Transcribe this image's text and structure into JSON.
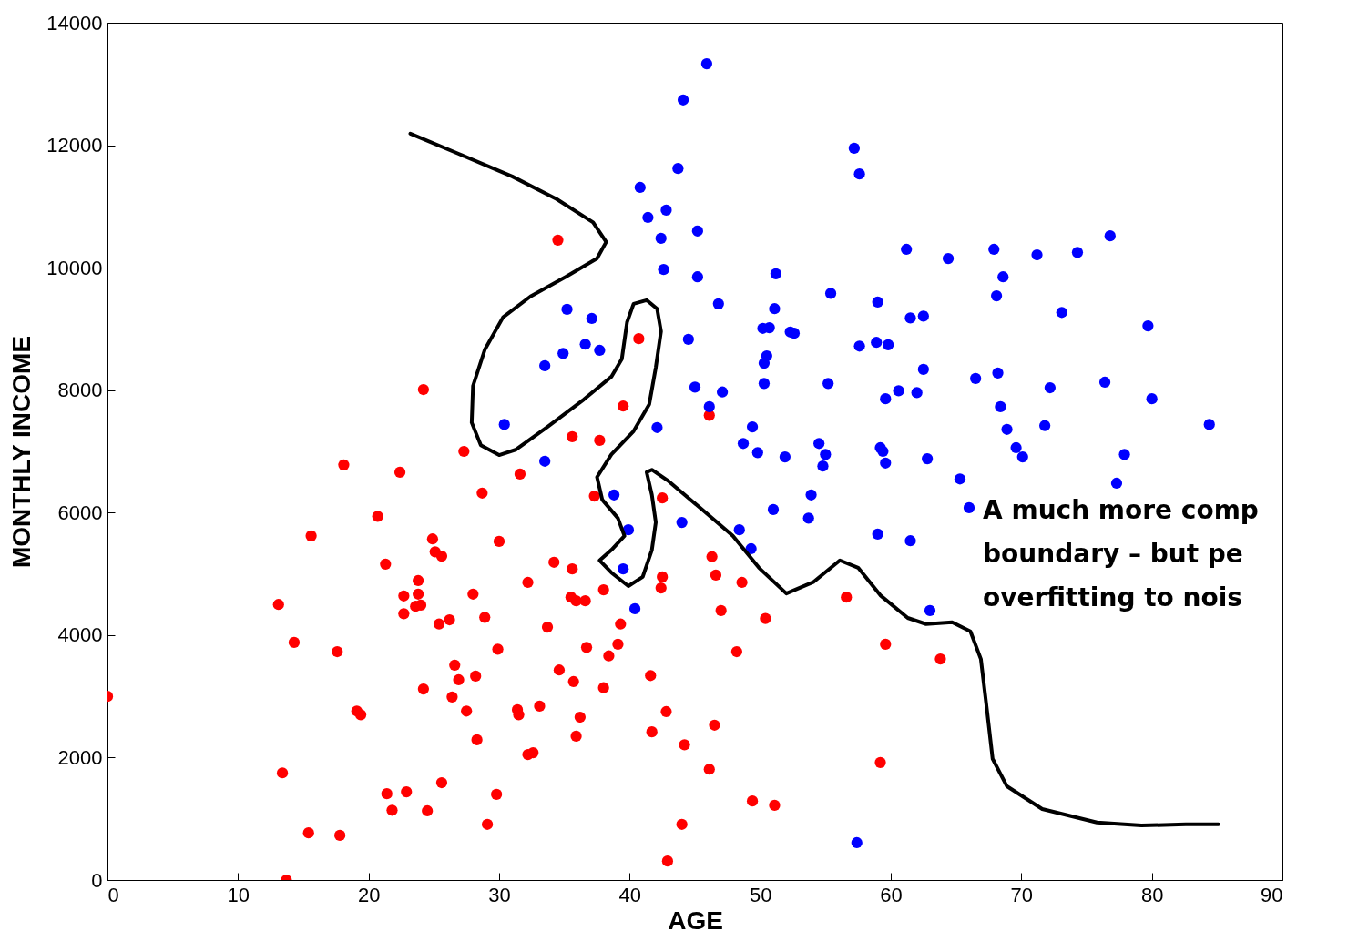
{
  "chart_data": {
    "type": "scatter",
    "xlabel": "AGE",
    "ylabel": "MONTHLY INCOME",
    "xlim": [
      0,
      90
    ],
    "ylim": [
      0,
      14000
    ],
    "xticks": [
      0,
      10,
      20,
      30,
      40,
      50,
      60,
      70,
      80,
      90
    ],
    "yticks": [
      0,
      2000,
      4000,
      6000,
      8000,
      10000,
      12000,
      14000
    ],
    "grid": false,
    "annotations": [
      "A much more comp\nboundary – but pe\noverfitting to nois"
    ],
    "series": [
      {
        "marker": "circle",
        "color": "#ff0000",
        "x": [
          0,
          13.1,
          13.4,
          13.7,
          14.3,
          15.4,
          15.6,
          17.6,
          17.8,
          18.1,
          19.1,
          19.4,
          20.7,
          21.3,
          21.4,
          21.8,
          22.4,
          22.7,
          22.7,
          22.9,
          23.8,
          23.8,
          23.6,
          24.0,
          24.2,
          24.2,
          24.5,
          24.9,
          25.1,
          25.6,
          25.4,
          26.2,
          25.6,
          26.4,
          26.6,
          26.9,
          27.3,
          27.5,
          28.0,
          28.2,
          28.3,
          28.7,
          28.9,
          29.1,
          29.8,
          29.9,
          30.0,
          31.4,
          31.5,
          31.6,
          32.2,
          32.2,
          32.6,
          33.1,
          33.7,
          34.2,
          34.5,
          34.6,
          35.6,
          35.6,
          35.5,
          35.9,
          35.7,
          35.9,
          36.2,
          36.6,
          36.7,
          37.3,
          37.7,
          38.0,
          38.0,
          38.4,
          39.1,
          39.3,
          39.5,
          40.7,
          41.6,
          41.7,
          42.5,
          42.5,
          42.4,
          42.8,
          42.9,
          44.0,
          44.2,
          46.1,
          46.3,
          46.6,
          46.5,
          46.1,
          47.0,
          48.2,
          48.6,
          49.4,
          50.4,
          51.1,
          56.6,
          59.6,
          59.2,
          63.8
        ],
        "values": [
          3000,
          4500,
          1750,
          0,
          3880,
          770,
          5620,
          3730,
          730,
          6780,
          2760,
          2700,
          5940,
          5160,
          1410,
          1140,
          6660,
          4640,
          4350,
          1440,
          4890,
          4670,
          4470,
          4490,
          8010,
          3120,
          1130,
          5570,
          5360,
          5290,
          4180,
          4250,
          1590,
          2990,
          3510,
          3270,
          7000,
          2760,
          4670,
          3330,
          2290,
          6320,
          4290,
          910,
          1400,
          3770,
          5530,
          2780,
          2700,
          6630,
          4860,
          2050,
          2080,
          2840,
          4130,
          5190,
          10450,
          3430,
          7240,
          5080,
          4620,
          4560,
          3240,
          2350,
          2660,
          4560,
          3800,
          6270,
          7180,
          4740,
          3140,
          3660,
          3850,
          4180,
          7740,
          8840,
          3340,
          2420,
          6240,
          4950,
          4770,
          2750,
          310,
          910,
          2210,
          7590,
          5280,
          4980,
          2530,
          1810,
          4400,
          3730,
          4860,
          1290,
          4270,
          1220,
          4620,
          3850,
          1920,
          3610
        ]
      },
      {
        "marker": "circle",
        "color": "#0000ff",
        "x": [
          30.4,
          33.5,
          33.5,
          34.9,
          35.2,
          36.6,
          37.1,
          37.7,
          38.8,
          39.9,
          39.5,
          40.4,
          40.8,
          41.4,
          42.1,
          42.4,
          42.6,
          42.8,
          43.7,
          44.1,
          44.0,
          44.5,
          45.0,
          45.2,
          45.2,
          45.9,
          46.1,
          46.8,
          47.1,
          48.4,
          48.7,
          49.3,
          49.4,
          49.8,
          50.2,
          50.7,
          50.3,
          50.5,
          50.3,
          51.0,
          51.1,
          51.2,
          51.9,
          52.3,
          52.6,
          53.7,
          53.9,
          54.5,
          54.8,
          55.0,
          55.2,
          55.4,
          57.2,
          57.6,
          57.6,
          57.4,
          59.0,
          58.9,
          59.0,
          59.2,
          59.4,
          59.6,
          59.8,
          59.6,
          60.6,
          61.2,
          61.5,
          61.5,
          62.0,
          62.5,
          62.5,
          62.8,
          63.0,
          64.4,
          65.3,
          66.0,
          66.5,
          67.9,
          68.1,
          68.2,
          68.4,
          68.6,
          68.9,
          69.6,
          70.1,
          71.2,
          71.8,
          72.2,
          73.1,
          74.3,
          76.4,
          76.8,
          77.3,
          77.9,
          79.7,
          80.0,
          84.4
        ],
        "values": [
          7440,
          8400,
          6840,
          8600,
          9320,
          8750,
          9170,
          8650,
          6290,
          5720,
          5080,
          4430,
          11310,
          10820,
          7390,
          10480,
          9970,
          10940,
          11620,
          12740,
          5840,
          8830,
          8050,
          9850,
          10600,
          13330,
          7730,
          9410,
          7970,
          5720,
          7130,
          5410,
          7400,
          6980,
          9010,
          9020,
          8440,
          8560,
          8110,
          6050,
          9330,
          9900,
          6910,
          8950,
          8930,
          5910,
          6290,
          7130,
          6760,
          6950,
          8110,
          9580,
          11950,
          11530,
          8720,
          610,
          9440,
          8780,
          5650,
          7060,
          7000,
          7860,
          8740,
          6810,
          7990,
          10300,
          9180,
          5540,
          7960,
          9210,
          8340,
          6880,
          4400,
          10150,
          6550,
          6080,
          8190,
          10300,
          9540,
          8280,
          7730,
          9850,
          7360,
          7060,
          6910,
          10210,
          7420,
          8040,
          9270,
          10250,
          8130,
          10520,
          6480,
          6950,
          9050,
          7860,
          7440
        ]
      },
      {
        "type": "line",
        "color": "#000000",
        "x": [
          23.2,
          26.9,
          31.0,
          34.4,
          37.2,
          38.2,
          37.5,
          35.1,
          32.4,
          30.3,
          28.9,
          28.0,
          27.9,
          28.6,
          30.0,
          31.3,
          33.7,
          36.5,
          38.6,
          39.4,
          39.8,
          40.3,
          41.3,
          42.1,
          42.4,
          42.0,
          41.5,
          40.3,
          38.6,
          37.5,
          37.9,
          39.1,
          39.6,
          38.6,
          37.7,
          38.6,
          39.9,
          41.0,
          41.7,
          42.0,
          41.7,
          41.3,
          41.7,
          43.0,
          45.5,
          47.9,
          49.9,
          52.0,
          54.1,
          56.1,
          57.5,
          59.2,
          61.3,
          62.7,
          64.7,
          66.1,
          66.9,
          67.4,
          67.8,
          68.9,
          71.6,
          75.8,
          79.2,
          82.6,
          85.1
        ],
        "values": [
          12190,
          11860,
          11490,
          11120,
          10740,
          10420,
          10150,
          9850,
          9530,
          9190,
          8660,
          8070,
          7470,
          7100,
          6940,
          7030,
          7400,
          7850,
          8220,
          8510,
          9110,
          9410,
          9470,
          9330,
          8960,
          8370,
          7770,
          7330,
          6950,
          6580,
          6210,
          5910,
          5620,
          5390,
          5220,
          5020,
          4800,
          4950,
          5390,
          5840,
          6290,
          6660,
          6700,
          6510,
          6060,
          5620,
          5100,
          4680,
          4870,
          5220,
          5100,
          4650,
          4280,
          4180,
          4210,
          4060,
          3610,
          2720,
          1980,
          1530,
          1160,
          940,
          890,
          910,
          910
        ]
      }
    ]
  }
}
